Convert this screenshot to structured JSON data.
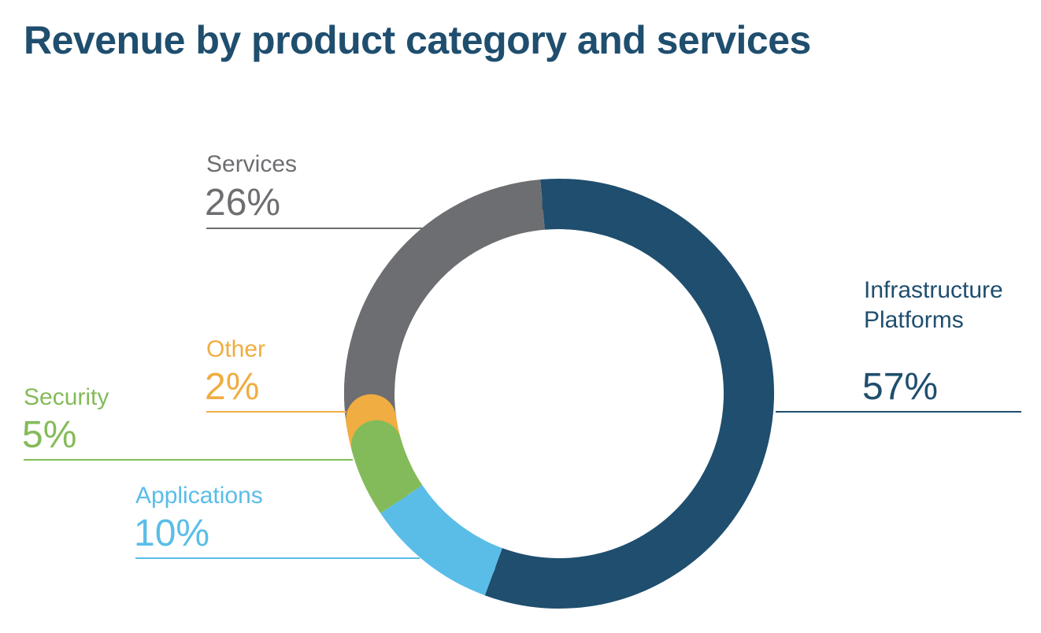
{
  "chart_data": {
    "type": "pie",
    "title": "Revenue by product category and services",
    "slices": [
      {
        "label": "Infrastructure Platforms",
        "label_lines": [
          "Infrastructure",
          "Platforms"
        ],
        "value": 57,
        "value_label": "57%",
        "color": "#1f4e6e"
      },
      {
        "label": "Applications",
        "label_lines": [
          "Applications"
        ],
        "value": 10,
        "value_label": "10%",
        "color": "#5abde8"
      },
      {
        "label": "Security",
        "label_lines": [
          "Security"
        ],
        "value": 5,
        "value_label": "5%",
        "color": "#84bb5a"
      },
      {
        "label": "Other",
        "label_lines": [
          "Other"
        ],
        "value": 2,
        "value_label": "2%",
        "color": "#f0ad41"
      },
      {
        "label": "Services",
        "label_lines": [
          "Services"
        ],
        "value": 26,
        "value_label": "26%",
        "color": "#6d6e71"
      }
    ],
    "style": "donut",
    "legend": "none"
  },
  "colors": {
    "title": "#1f4e6e"
  }
}
